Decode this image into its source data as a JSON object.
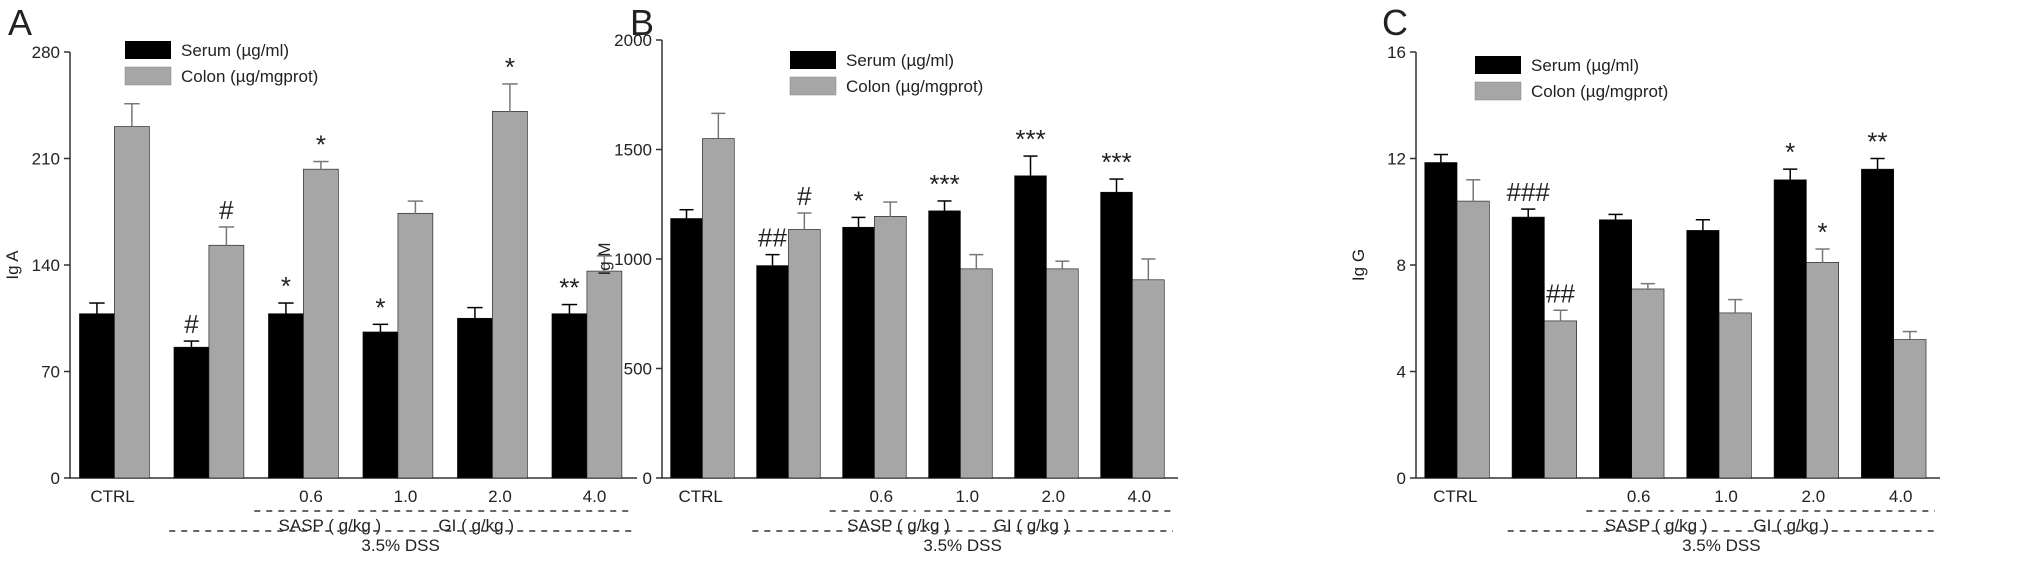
{
  "legend": {
    "serum": "Serum (µg/ml)",
    "colon": "Colon (µg/mgprot)"
  },
  "colors": {
    "serum": "#000000",
    "colon": "#a6a6a6",
    "axis": "#333333"
  },
  "categories": [
    "CTRL",
    "",
    "0.6",
    "1.0",
    "2.0",
    "4.0"
  ],
  "group_labels": {
    "sasp": "SASP ( g/kg )",
    "gi": "GI ( g/kg )",
    "dss": "3.5% DSS"
  },
  "chart_data": [
    {
      "type": "bar",
      "panel": "A",
      "ylabel": "Ig A",
      "ylim": [
        0,
        280
      ],
      "yticks": [
        0,
        70,
        140,
        210,
        280
      ],
      "categories": [
        "CTRL",
        "",
        "0.6",
        "1.0",
        "2.0",
        "4.0"
      ],
      "series": [
        {
          "name": "Serum (µg/ml)",
          "values": [
            108,
            86,
            108,
            96,
            105,
            108
          ],
          "errors": [
            7,
            4,
            7,
            5,
            7,
            6
          ],
          "labels": [
            "",
            "#",
            "*",
            "*",
            "",
            "**"
          ]
        },
        {
          "name": "Colon (µg/mgprot)",
          "values": [
            231,
            153,
            203,
            174,
            241,
            136
          ],
          "errors": [
            15,
            12,
            5,
            8,
            18,
            10
          ],
          "labels": [
            "",
            "#",
            "*",
            "",
            "*",
            ""
          ]
        }
      ]
    },
    {
      "type": "bar",
      "panel": "B",
      "ylabel": "Ig M",
      "ylim": [
        0,
        2000
      ],
      "yticks": [
        0,
        500,
        1000,
        1500,
        2000
      ],
      "categories": [
        "CTRL",
        "",
        "0.6",
        "1.0",
        "2.0",
        "4.0"
      ],
      "series": [
        {
          "name": "Serum (µg/ml)",
          "values": [
            1185,
            970,
            1145,
            1220,
            1380,
            1305
          ],
          "errors": [
            40,
            50,
            45,
            45,
            90,
            60
          ],
          "labels": [
            "",
            "##",
            "*",
            "***",
            "***",
            "***"
          ]
        },
        {
          "name": "Colon (µg/mgprot)",
          "values": [
            1550,
            1135,
            1195,
            955,
            955,
            905
          ],
          "errors": [
            115,
            75,
            65,
            65,
            35,
            95
          ],
          "labels": [
            "",
            "#",
            "",
            "",
            "",
            ""
          ]
        }
      ]
    },
    {
      "type": "bar",
      "panel": "C",
      "ylabel": "Ig G",
      "ylim": [
        0,
        16
      ],
      "yticks": [
        0,
        4,
        8,
        12,
        16
      ],
      "categories": [
        "CTRL",
        "",
        "0.6",
        "1.0",
        "2.0",
        "4.0"
      ],
      "series": [
        {
          "name": "Serum (µg/ml)",
          "values": [
            11.85,
            9.8,
            9.7,
            9.3,
            11.2,
            11.6
          ],
          "errors": [
            0.3,
            0.3,
            0.2,
            0.4,
            0.4,
            0.4
          ],
          "labels": [
            "",
            "###",
            "",
            "",
            "*",
            "**"
          ]
        },
        {
          "name": "Colon (µg/mgprot)",
          "values": [
            10.4,
            5.9,
            7.1,
            6.2,
            8.1,
            5.2
          ],
          "errors": [
            0.8,
            0.4,
            0.2,
            0.5,
            0.5,
            0.3
          ],
          "labels": [
            "",
            "##",
            "",
            "",
            "*",
            ""
          ]
        }
      ]
    }
  ]
}
